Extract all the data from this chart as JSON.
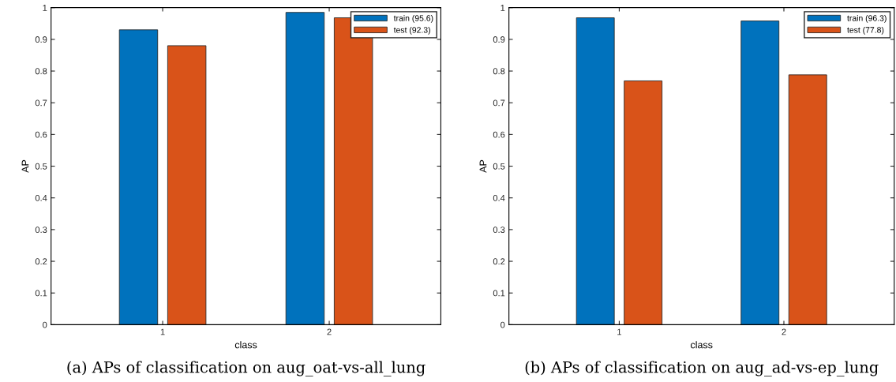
{
  "chart_data": [
    {
      "type": "bar",
      "title": "(a) APs of classification on aug_oat-vs-all_lung",
      "xlabel": "class",
      "ylabel": "AP",
      "categories": [
        "1",
        "2"
      ],
      "series": [
        {
          "name": "train (95.6)",
          "color": "#0072bd",
          "values": [
            0.93,
            0.985
          ]
        },
        {
          "name": "test (92.3)",
          "color": "#d95319",
          "values": [
            0.88,
            0.968
          ]
        }
      ],
      "ylim": [
        0,
        1
      ],
      "yticks": [
        0,
        0.1,
        0.2,
        0.3,
        0.4,
        0.5,
        0.6,
        0.7,
        0.8,
        0.9,
        1
      ],
      "grid": false,
      "legend": "top right"
    },
    {
      "type": "bar",
      "title": "(b) APs of classification on aug_ad-vs-ep_lung",
      "xlabel": "class",
      "ylabel": "AP",
      "categories": [
        "1",
        "2"
      ],
      "series": [
        {
          "name": "train (96.3)",
          "color": "#0072bd",
          "values": [
            0.968,
            0.958
          ]
        },
        {
          "name": "test (77.8)",
          "color": "#d95319",
          "values": [
            0.769,
            0.788
          ]
        }
      ],
      "ylim": [
        0,
        1
      ],
      "yticks": [
        0,
        0.1,
        0.2,
        0.3,
        0.4,
        0.5,
        0.6,
        0.7,
        0.8,
        0.9,
        1
      ],
      "grid": false,
      "legend": "top right"
    }
  ]
}
